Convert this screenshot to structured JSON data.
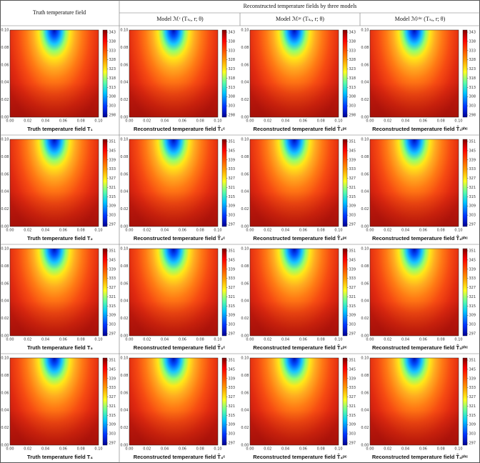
{
  "header": {
    "truth": "Truth temperature field",
    "group": "Reconstructed temperature fields by three models",
    "models": [
      "Model ℳᶜ (Tₛₑ, r; θ)",
      "Model ℳᵖᶜ (Tₛₑ, r; θ)",
      "Model ℳᵖʰᶜ (Tₛₑ, r; θ)"
    ]
  },
  "axis_ticks": [
    "0.00",
    "0.02",
    "0.04",
    "0.06",
    "0.08",
    "0.10"
  ],
  "rows": [
    {
      "panels": [
        {
          "caption": "Truth temperature field T₁",
          "colorbar_ticks": [
            343,
            338,
            333,
            328,
            323,
            318,
            313,
            308,
            303,
            298
          ]
        },
        {
          "caption": "Reconstructed temperature field T̂₁ᶜ",
          "colorbar_ticks": [
            343,
            338,
            333,
            328,
            323,
            318,
            313,
            308,
            303,
            298
          ]
        },
        {
          "caption": "Reconstructed temperature field T̂₁ᵖᶜ",
          "colorbar_ticks": [
            343,
            338,
            333,
            328,
            323,
            318,
            313,
            308,
            303,
            298
          ]
        },
        {
          "caption": "Reconstructed temperature field T̂₁ᵖʰᶜ",
          "colorbar_ticks": [
            343,
            338,
            333,
            328,
            323,
            318,
            313,
            308,
            303,
            298
          ]
        }
      ]
    },
    {
      "panels": [
        {
          "caption": "Truth temperature field T₂",
          "colorbar_ticks": [
            351,
            345,
            339,
            333,
            327,
            321,
            315,
            309,
            303,
            297
          ]
        },
        {
          "caption": "Reconstructed temperature field T̂₂ᶜ",
          "colorbar_ticks": [
            351,
            345,
            339,
            333,
            327,
            321,
            315,
            309,
            303,
            297
          ]
        },
        {
          "caption": "Reconstructed temperature field T̂₂ᵖᶜ",
          "colorbar_ticks": [
            351,
            345,
            339,
            333,
            327,
            321,
            315,
            309,
            303,
            297
          ]
        },
        {
          "caption": "Reconstructed temperature field T̂₂ᵖʰᶜ",
          "colorbar_ticks": [
            351,
            345,
            339,
            333,
            327,
            321,
            315,
            309,
            303,
            297
          ]
        }
      ]
    },
    {
      "panels": [
        {
          "caption": "Truth temperature field T₃",
          "colorbar_ticks": [
            351,
            345,
            339,
            333,
            327,
            321,
            315,
            309,
            303,
            297
          ]
        },
        {
          "caption": "Reconstructed temperature field T̂₃ᶜ",
          "colorbar_ticks": [
            351,
            345,
            339,
            333,
            327,
            321,
            315,
            309,
            303,
            297
          ]
        },
        {
          "caption": "Reconstructed temperature field T̂₃ᵖᶜ",
          "colorbar_ticks": [
            351,
            345,
            339,
            333,
            327,
            321,
            315,
            309,
            303,
            297
          ]
        },
        {
          "caption": "Reconstructed temperature field T̂₃ᵖʰᶜ",
          "colorbar_ticks": [
            351,
            345,
            339,
            333,
            327,
            321,
            315,
            309,
            303,
            297
          ]
        }
      ]
    },
    {
      "panels": [
        {
          "caption": "Truth temperature field T₄",
          "colorbar_ticks": [
            351,
            345,
            339,
            333,
            327,
            321,
            315,
            309,
            303,
            297
          ]
        },
        {
          "caption": "Reconstructed temperature field T̂₄ᶜ",
          "colorbar_ticks": [
            351,
            345,
            339,
            333,
            327,
            321,
            315,
            309,
            303,
            297
          ]
        },
        {
          "caption": "Reconstructed temperature field T̂₄ᵖᶜ",
          "colorbar_ticks": [
            351,
            345,
            339,
            333,
            327,
            321,
            315,
            309,
            303,
            297
          ]
        },
        {
          "caption": "Reconstructed temperature field T̂₄ᵖʰᶜ",
          "colorbar_ticks": [
            351,
            345,
            339,
            333,
            327,
            321,
            315,
            309,
            303,
            297
          ]
        }
      ]
    }
  ]
}
